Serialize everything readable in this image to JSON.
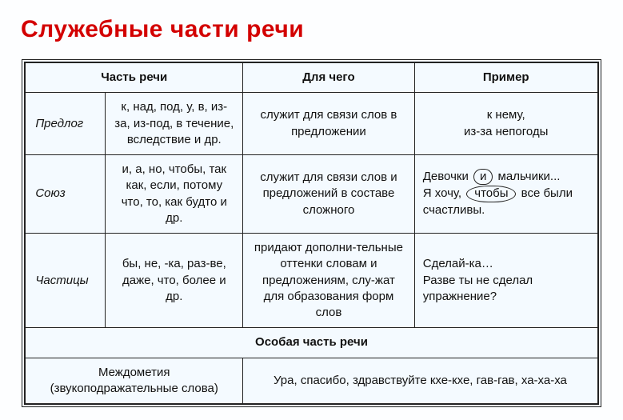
{
  "title": "Служебные части речи",
  "headers": {
    "col12": "Часть речи",
    "col3": "Для чего",
    "col4": "Пример"
  },
  "rows": [
    {
      "label": "Предлог",
      "forms": "к, над, под, у, в, из-за, из-под, в течение, вследствие и др.",
      "purpose": "служит для связи слов в предложении",
      "example_html": "к нему,<br>из-за непогоды",
      "example_center": true
    },
    {
      "label": "Союз",
      "forms": "и, а, но, чтобы, так как, если, потому что, то, как будто и др.",
      "purpose": "служит для связи слов и предложений в составе сложного",
      "example_html": "Девочки <span class=\"circled\">и</span> мальчики...<br>Я хочу, <span class=\"circled-long\">чтобы</span> все были счастливы.",
      "example_center": false
    },
    {
      "label": "Частицы",
      "forms": "бы, не, -ка, раз-ве, даже, что, более и др.",
      "purpose": "придают дополни-тельные оттенки словам и предложениям, слу-жат для образования форм слов",
      "example_html": "Сделай-ка…<br>Разве ты не сделал упражнение?",
      "example_center": false
    }
  ],
  "special_header": "Особая часть речи",
  "footer": {
    "left_label": "Междометия",
    "left_paren": "(звукоподражательные слова)",
    "right": "Ура, спасибо, здравствуйте кхе-кхе, гав-гав, ха-ха-ха"
  },
  "colors": {
    "title": "#d30000",
    "border": "#222222",
    "background": "#f4faff"
  }
}
